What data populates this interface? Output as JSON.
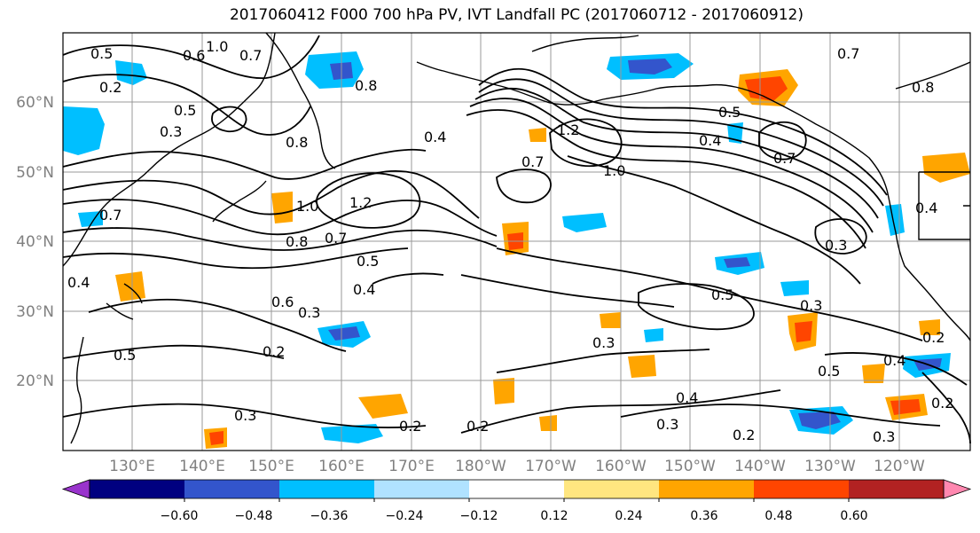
{
  "title": "2017060412 F000 700 hPa PV, IVT Landfall PC (2017060712 - 2017060912)",
  "lat_labels": [
    "60°N",
    "50°N",
    "40°N",
    "30°N",
    "20°N"
  ],
  "lon_labels": [
    "130°E",
    "140°E",
    "150°E",
    "160°E",
    "170°E",
    "180°W",
    "170°W",
    "160°W",
    "150°W",
    "140°W",
    "130°W",
    "120°W"
  ],
  "colorbar": {
    "colors": [
      "#9933cc",
      "#000080",
      "#3355cc",
      "#00bfff",
      "#b0e2ff",
      "#ffffff",
      "#ffe680",
      "#ffa500",
      "#ff4500",
      "#b22222",
      "#ff88b0"
    ],
    "tick_labels": [
      "−0.60",
      "−0.48",
      "−0.36",
      "−0.24",
      "−0.12",
      "0.12",
      "0.24",
      "0.36",
      "0.48",
      "0.60"
    ]
  },
  "contour_labels": [
    "0.5",
    "0.6",
    "1.0",
    "0.7",
    "0.2",
    "0.5",
    "0.8",
    "0.8",
    "0.3",
    "1.2",
    "0.4",
    "0.7",
    "0.5",
    "0.4",
    "0.7",
    "0.8",
    "0.7",
    "1.0",
    "1.2",
    "1.0",
    "0.7",
    "0.8",
    "0.7",
    "0.4",
    "0.5",
    "0.4",
    "0.6",
    "0.3",
    "0.2",
    "0.5",
    "0.3",
    "0.3",
    "0.5",
    "0.4",
    "0.3",
    "0.2",
    "0.2",
    "0.4",
    "0.3",
    "0.2",
    "0.3",
    "0.2",
    "0.2",
    "0.3",
    "0.5",
    "0.4"
  ]
}
